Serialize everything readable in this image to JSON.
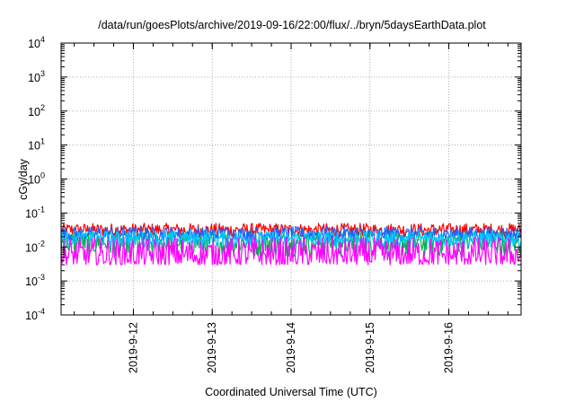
{
  "chart_data": {
    "type": "line",
    "title": "/data/run/goesPlots/archive/2019-09-16/22:00/flux/../bryn/5daysEarthData.plot",
    "xlabel": "Coordinated Universal Time (UTC)",
    "ylabel": "cGy/day",
    "yscale": "log",
    "ylim": [
      0.0001,
      10000
    ],
    "xlim": [
      "2019-09-11 02:00",
      "2019-09-16 22:00"
    ],
    "grid": true,
    "x_ticks": [
      "2019-9-12",
      "2019-9-13",
      "2019-9-14",
      "2019-9-15",
      "2019-9-16"
    ],
    "y_ticks": [
      {
        "base": "10",
        "exp": "-4"
      },
      {
        "base": "10",
        "exp": "-3"
      },
      {
        "base": "10",
        "exp": "-2"
      },
      {
        "base": "10",
        "exp": "-1"
      },
      {
        "base": "10",
        "exp": "0"
      },
      {
        "base": "10",
        "exp": "1"
      },
      {
        "base": "10",
        "exp": "2"
      },
      {
        "base": "10",
        "exp": "3"
      },
      {
        "base": "10",
        "exp": "4"
      }
    ],
    "series": [
      {
        "color": "#ff0000",
        "approx_range": [
          0.02,
          0.05
        ]
      },
      {
        "color": "#00b050",
        "approx_range": [
          0.005,
          0.03
        ]
      },
      {
        "color": "#1e64ff",
        "approx_range": [
          0.015,
          0.04
        ]
      },
      {
        "color": "#00c8ff",
        "approx_range": [
          0.01,
          0.03
        ]
      },
      {
        "color": "#ff00ff",
        "approx_range": [
          0.003,
          0.02
        ]
      }
    ]
  }
}
